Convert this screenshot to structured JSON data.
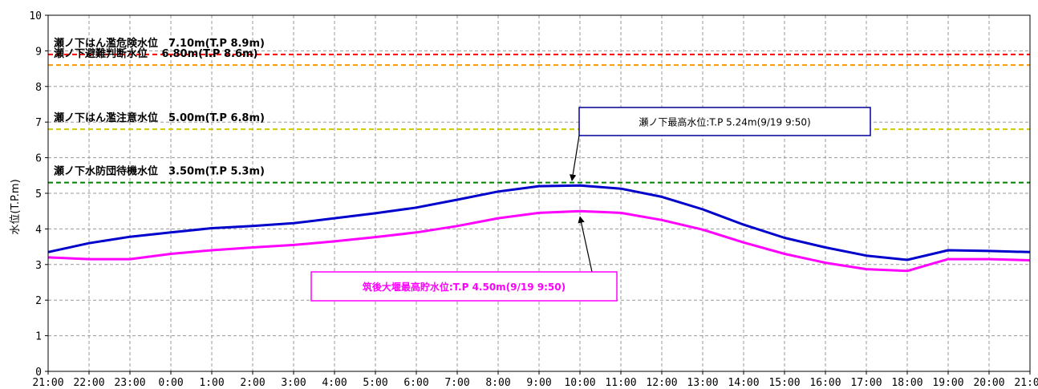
{
  "chart_data": {
    "type": "line",
    "title": "",
    "xlabel": "",
    "ylabel": "水位(T.P.m)",
    "ylim": [
      0,
      10
    ],
    "yticks": [
      "0",
      "1",
      "2",
      "3",
      "4",
      "5",
      "6",
      "7",
      "8",
      "9",
      "10"
    ],
    "categories": [
      "21:00",
      "22:00",
      "23:00",
      "0:00",
      "1:00",
      "2:00",
      "3:00",
      "4:00",
      "5:00",
      "6:00",
      "7:00",
      "8:00",
      "9:00",
      "10:00",
      "11:00",
      "12:00",
      "13:00",
      "14:00",
      "15:00",
      "16:00",
      "17:00",
      "18:00",
      "19:00",
      "20:00",
      "21:00"
    ],
    "grid": true,
    "series": [
      {
        "color": "#0000cc",
        "values": [
          3.35,
          3.6,
          3.78,
          3.9,
          4.02,
          4.08,
          4.16,
          4.3,
          4.44,
          4.6,
          4.82,
          5.05,
          5.2,
          5.22,
          5.13,
          4.9,
          4.55,
          4.12,
          3.75,
          3.48,
          3.25,
          3.13,
          3.4,
          3.38,
          3.35
        ]
      },
      {
        "color": "#ff00ff",
        "values": [
          3.2,
          3.15,
          3.15,
          3.3,
          3.4,
          3.48,
          3.55,
          3.65,
          3.77,
          3.9,
          4.08,
          4.3,
          4.45,
          4.5,
          4.45,
          4.25,
          3.98,
          3.62,
          3.3,
          3.05,
          2.87,
          2.82,
          3.15,
          3.15,
          3.12
        ]
      }
    ],
    "reference_lines": [
      {
        "label": "瀬ノ下はん濫危険水位　7.10m(T.P 8.9m)",
        "y": 8.9,
        "color": "#ff0000"
      },
      {
        "label": "瀬ノ下避難判断水位　 6.80m(T.P 8.6m)",
        "y": 8.6,
        "color": "#ff9900"
      },
      {
        "label": "瀬ノ下はん濫注意水位　5.00m(T.P 6.8m)",
        "y": 6.8,
        "color": "#cccc00"
      },
      {
        "label": "瀬ノ下水防団待機水位　3.50m(T.P 5.3m)",
        "y": 5.3,
        "color": "#008000"
      }
    ],
    "annotations": [
      {
        "text": "瀬ノ下最高水位:T.P 5.24m(9/19 9:50)",
        "target_x_index": 13,
        "target_y": 5.22,
        "border_color": "#000099",
        "text_color": "#000000"
      },
      {
        "text": "筑後大堰最高貯水位:T.P 4.50m(9/19 9:50)",
        "target_x_index": 13,
        "target_y": 4.5,
        "border_color": "#ff00ff",
        "text_color": "#ff00ff"
      }
    ]
  }
}
